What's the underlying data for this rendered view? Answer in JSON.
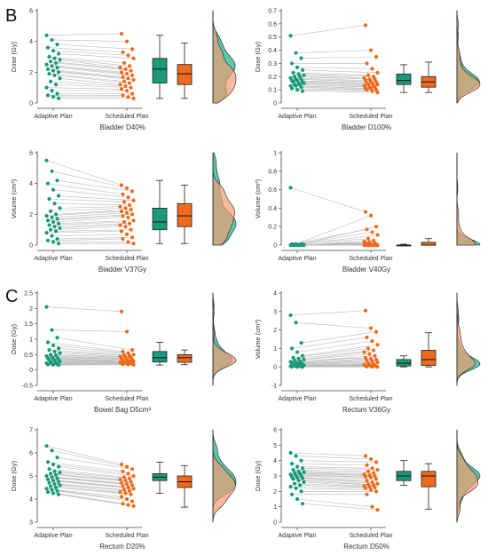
{
  "figure": {
    "labels": [
      "B",
      "C"
    ]
  },
  "colors": {
    "adaptive": "#1a9a7a",
    "scheduled": "#ee6a1c",
    "adaptive_fill": "#3dbf9e",
    "scheduled_fill": "#f19b70",
    "overlap": "#a7885a",
    "pair_line": "#bbbbbb"
  },
  "chart_data": [
    {
      "id": "bladder-d40",
      "type": "paired-scatter-box-density",
      "title": "Bladder D40%",
      "ylabel": "Dose (Gy)",
      "categories": [
        "Adaptive Plan",
        "Scheduled Plan"
      ],
      "ylim": [
        0,
        6
      ],
      "yticks": [
        0,
        2,
        4,
        6
      ],
      "series": [
        {
          "values": [
            4.4,
            4.1,
            3.8,
            3.6,
            3.4,
            3.2,
            3.0,
            2.9,
            2.8,
            2.7,
            2.6,
            2.5,
            2.4,
            2.3,
            2.2,
            2.1,
            2.0,
            1.9,
            1.8,
            1.6,
            1.4,
            1.2,
            1.0,
            0.8,
            0.6,
            0.5,
            0.4,
            0.3
          ]
        },
        {
          "values": [
            4.5,
            4.0,
            3.5,
            3.3,
            3.1,
            2.9,
            2.6,
            2.4,
            2.3,
            2.2,
            2.1,
            2.0,
            1.9,
            1.8,
            1.7,
            1.6,
            1.5,
            1.4,
            1.3,
            1.2,
            1.1,
            1.0,
            0.9,
            0.8,
            0.6,
            0.5,
            0.4,
            0.3
          ]
        }
      ],
      "box": [
        {
          "min": 0.3,
          "q1": 1.3,
          "median": 2.2,
          "q3": 2.9,
          "max": 4.4
        },
        {
          "min": 0.3,
          "q1": 1.2,
          "median": 1.9,
          "q3": 2.5,
          "max": 3.9
        }
      ]
    },
    {
      "id": "bladder-d100",
      "type": "paired-scatter-box-density",
      "title": "Bladder D100%",
      "ylabel": "Dose (Gy)",
      "categories": [
        "Adaptive Plan",
        "Scheduled Plan"
      ],
      "ylim": [
        0,
        0.7
      ],
      "yticks": [
        0,
        0.1,
        0.2,
        0.3,
        0.4,
        0.5,
        0.6,
        0.7
      ],
      "series": [
        {
          "values": [
            0.51,
            0.38,
            0.34,
            0.3,
            0.27,
            0.25,
            0.23,
            0.22,
            0.21,
            0.2,
            0.2,
            0.19,
            0.18,
            0.18,
            0.17,
            0.17,
            0.16,
            0.16,
            0.15,
            0.15,
            0.14,
            0.14,
            0.13,
            0.13,
            0.12,
            0.11,
            0.1,
            0.09
          ]
        },
        {
          "values": [
            0.59,
            0.4,
            0.35,
            0.3,
            0.26,
            0.23,
            0.21,
            0.2,
            0.19,
            0.18,
            0.18,
            0.17,
            0.16,
            0.16,
            0.15,
            0.15,
            0.14,
            0.14,
            0.13,
            0.13,
            0.12,
            0.12,
            0.11,
            0.11,
            0.1,
            0.1,
            0.09,
            0.08
          ]
        }
      ],
      "box": [
        {
          "min": 0.08,
          "q1": 0.14,
          "median": 0.17,
          "q3": 0.22,
          "max": 0.29
        },
        {
          "min": 0.08,
          "q1": 0.12,
          "median": 0.16,
          "q3": 0.2,
          "max": 0.31
        }
      ]
    },
    {
      "id": "bladder-v37",
      "type": "paired-scatter-box-density",
      "title": "Bladder V37Gy",
      "ylabel": "Volume (cm³)",
      "categories": [
        "Adaptive Plan",
        "Scheduled Plan"
      ],
      "ylim": [
        0,
        6
      ],
      "yticks": [
        0,
        2,
        4,
        6
      ],
      "series": [
        {
          "values": [
            5.5,
            4.8,
            4.2,
            4.0,
            3.6,
            3.2,
            3.0,
            2.7,
            2.4,
            2.2,
            2.0,
            1.9,
            1.8,
            1.7,
            1.6,
            1.5,
            1.4,
            1.3,
            1.2,
            1.1,
            1.0,
            0.9,
            0.8,
            0.6,
            0.4,
            0.3,
            0.2,
            0.1
          ]
        },
        {
          "values": [
            3.9,
            3.7,
            3.5,
            3.3,
            3.1,
            2.9,
            2.8,
            2.6,
            2.5,
            2.4,
            2.3,
            2.2,
            2.1,
            2.0,
            1.9,
            1.8,
            1.6,
            1.5,
            1.4,
            1.3,
            1.2,
            1.0,
            0.9,
            0.7,
            0.5,
            0.4,
            0.2,
            0.1
          ]
        }
      ],
      "box": [
        {
          "min": 0.1,
          "q1": 1.0,
          "median": 1.5,
          "q3": 2.4,
          "max": 4.2
        },
        {
          "min": 0.1,
          "q1": 1.2,
          "median": 1.9,
          "q3": 2.7,
          "max": 3.9
        }
      ]
    },
    {
      "id": "bladder-v40",
      "type": "paired-scatter-box-density",
      "title": "Bladder V40Gy",
      "ylabel": "Volume (cm³)",
      "categories": [
        "Adaptive Plan",
        "Scheduled Plan"
      ],
      "ylim": [
        0,
        1.0
      ],
      "yticks": [
        0,
        0.2,
        0.4,
        0.6,
        0.8,
        1.0
      ],
      "series": [
        {
          "values": [
            0.62,
            0.01,
            0.01,
            0.01,
            0.01,
            0.01,
            0.01,
            0.0,
            0.0,
            0.0,
            0.0,
            0.0,
            0.0,
            0.0,
            0.0,
            0.0,
            0.0,
            0.0,
            0.0,
            0.0,
            0.0,
            0.0,
            0.0,
            0.0,
            0.0,
            0.0,
            0.0,
            0.0
          ]
        },
        {
          "values": [
            0.36,
            0.32,
            0.2,
            0.17,
            0.14,
            0.11,
            0.07,
            0.05,
            0.04,
            0.03,
            0.02,
            0.02,
            0.01,
            0.01,
            0.01,
            0.0,
            0.0,
            0.0,
            0.0,
            0.0,
            0.0,
            0.0,
            0.0,
            0.0,
            0.0,
            0.0,
            0.0,
            0.0
          ]
        }
      ],
      "box": [
        {
          "min": 0.0,
          "q1": 0.0,
          "median": 0.0,
          "q3": 0.0,
          "max": 0.01
        },
        {
          "min": 0.0,
          "q1": 0.0,
          "median": 0.0,
          "q3": 0.03,
          "max": 0.07
        }
      ]
    },
    {
      "id": "bowel-d5",
      "type": "paired-scatter-box-density",
      "title": "Bowel Bag D5cm³",
      "ylabel": "Dose (Gy)",
      "categories": [
        "Adaptive Plan",
        "Scheduled Plan"
      ],
      "ylim": [
        -0.5,
        2.5
      ],
      "yticks": [
        -0.5,
        0.0,
        0.5,
        1.0,
        1.5,
        2.0,
        2.5
      ],
      "series": [
        {
          "values": [
            2.05,
            1.3,
            1.05,
            0.9,
            0.8,
            0.7,
            0.65,
            0.6,
            0.55,
            0.5,
            0.48,
            0.45,
            0.42,
            0.4,
            0.38,
            0.36,
            0.34,
            0.32,
            0.3,
            0.28,
            0.26,
            0.24,
            0.22,
            0.2,
            0.19,
            0.18,
            0.17,
            0.16
          ]
        },
        {
          "values": [
            1.9,
            1.25,
            0.65,
            0.6,
            0.55,
            0.5,
            0.48,
            0.46,
            0.44,
            0.42,
            0.4,
            0.38,
            0.36,
            0.34,
            0.32,
            0.3,
            0.28,
            0.27,
            0.26,
            0.25,
            0.24,
            0.23,
            0.22,
            0.21,
            0.2,
            0.19,
            0.18,
            0.17
          ]
        }
      ],
      "box": [
        {
          "min": 0.16,
          "q1": 0.26,
          "median": 0.4,
          "q3": 0.6,
          "max": 0.9
        },
        {
          "min": 0.17,
          "q1": 0.25,
          "median": 0.4,
          "q3": 0.5,
          "max": 0.65
        }
      ]
    },
    {
      "id": "rectum-v36",
      "type": "paired-scatter-box-density",
      "title": "Rectum V36Gy",
      "ylabel": "Volume (cm³)",
      "categories": [
        "Adaptive Plan",
        "Scheduled Plan"
      ],
      "ylim": [
        -1,
        4
      ],
      "yticks": [
        -1,
        0,
        1,
        2,
        3,
        4
      ],
      "series": [
        {
          "values": [
            2.8,
            2.4,
            1.3,
            1.0,
            0.8,
            0.6,
            0.5,
            0.45,
            0.4,
            0.35,
            0.3,
            0.28,
            0.25,
            0.22,
            0.2,
            0.18,
            0.15,
            0.12,
            0.1,
            0.08,
            0.06,
            0.05,
            0.04,
            0.03,
            0.02,
            0.01,
            0.0,
            0.0
          ]
        },
        {
          "values": [
            3.05,
            2.1,
            1.9,
            1.6,
            1.4,
            1.2,
            1.0,
            0.9,
            0.8,
            0.7,
            0.6,
            0.5,
            0.45,
            0.4,
            0.35,
            0.3,
            0.25,
            0.2,
            0.15,
            0.12,
            0.1,
            0.08,
            0.06,
            0.05,
            0.03,
            0.02,
            0.01,
            0.0
          ]
        }
      ],
      "box": [
        {
          "min": 0.0,
          "q1": 0.05,
          "median": 0.2,
          "q3": 0.4,
          "max": 0.6
        },
        {
          "min": 0.0,
          "q1": 0.08,
          "median": 0.4,
          "q3": 0.9,
          "max": 1.85
        }
      ]
    },
    {
      "id": "rectum-d20",
      "type": "paired-scatter-box-density",
      "title": "Rectum D20%",
      "ylabel": "Dose (Gy)",
      "categories": [
        "Adaptive Plan",
        "Scheduled Plan"
      ],
      "ylim": [
        3,
        7
      ],
      "yticks": [
        3,
        4,
        5,
        6,
        7
      ],
      "series": [
        {
          "values": [
            6.3,
            6.1,
            5.8,
            5.6,
            5.5,
            5.4,
            5.3,
            5.2,
            5.15,
            5.1,
            5.05,
            5.0,
            4.95,
            4.9,
            4.85,
            4.8,
            4.75,
            4.7,
            4.65,
            4.6,
            4.55,
            4.5,
            4.45,
            4.4,
            4.35,
            4.3,
            4.25,
            4.2
          ]
        },
        {
          "values": [
            5.5,
            5.4,
            5.3,
            5.2,
            5.1,
            5.0,
            4.95,
            4.9,
            4.85,
            4.8,
            4.75,
            4.7,
            4.65,
            4.6,
            4.55,
            4.5,
            4.45,
            4.4,
            4.35,
            4.3,
            4.25,
            4.2,
            4.1,
            4.0,
            3.9,
            3.8,
            3.75,
            3.7
          ]
        }
      ],
      "box": [
        {
          "min": 4.25,
          "q1": 4.8,
          "median": 4.95,
          "q3": 5.1,
          "max": 5.6
        },
        {
          "min": 3.65,
          "q1": 4.5,
          "median": 4.75,
          "q3": 5.0,
          "max": 5.45
        }
      ]
    },
    {
      "id": "rectum-d50",
      "type": "paired-scatter-box-density",
      "title": "Rectum D50%",
      "ylabel": "Dose (Gy)",
      "categories": [
        "Adaptive Plan",
        "Scheduled Plan"
      ],
      "ylim": [
        0,
        6
      ],
      "yticks": [
        0,
        1,
        2,
        3,
        4,
        5,
        6
      ],
      "series": [
        {
          "values": [
            4.5,
            4.3,
            4.0,
            3.8,
            3.6,
            3.5,
            3.4,
            3.3,
            3.25,
            3.2,
            3.15,
            3.1,
            3.05,
            3.0,
            2.95,
            2.9,
            2.85,
            2.8,
            2.7,
            2.6,
            2.5,
            2.4,
            2.3,
            2.2,
            2.0,
            1.8,
            1.5,
            1.2
          ]
        },
        {
          "values": [
            4.3,
            4.1,
            3.9,
            3.7,
            3.5,
            3.4,
            3.3,
            3.2,
            3.1,
            3.05,
            3.0,
            2.95,
            2.9,
            2.8,
            2.7,
            2.6,
            2.5,
            2.45,
            2.4,
            2.35,
            2.3,
            2.25,
            2.2,
            2.1,
            2.0,
            1.8,
            1.0,
            0.8
          ]
        }
      ],
      "box": [
        {
          "min": 2.4,
          "q1": 2.7,
          "median": 3.0,
          "q3": 3.3,
          "max": 4.0
        },
        {
          "min": 0.85,
          "q1": 2.3,
          "median": 3.0,
          "q3": 3.3,
          "max": 3.8
        }
      ]
    }
  ]
}
